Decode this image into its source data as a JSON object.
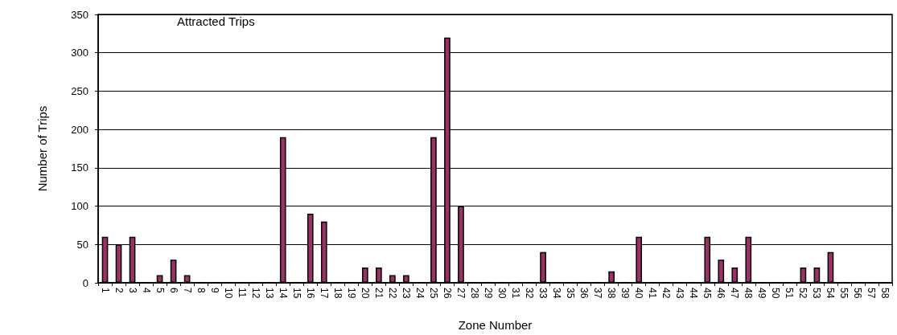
{
  "chart_data": {
    "type": "bar",
    "title": "Attracted Trips",
    "xlabel": "Zone Number",
    "ylabel": "Number of Trips",
    "categories": [
      "1",
      "2",
      "3",
      "4",
      "5",
      "6",
      "7",
      "8",
      "9",
      "10",
      "11",
      "12",
      "13",
      "14",
      "15",
      "16",
      "17",
      "18",
      "19",
      "20",
      "21",
      "22",
      "23",
      "24",
      "25",
      "26",
      "27",
      "28",
      "29",
      "30",
      "31",
      "32",
      "33",
      "34",
      "35",
      "36",
      "37",
      "38",
      "39",
      "40",
      "41",
      "42",
      "43",
      "44",
      "45",
      "46",
      "47",
      "48",
      "49",
      "50",
      "51",
      "52",
      "53",
      "54",
      "55",
      "56",
      "57",
      "58"
    ],
    "values": [
      60,
      50,
      60,
      0,
      10,
      30,
      10,
      0,
      0,
      0,
      0,
      0,
      0,
      190,
      0,
      90,
      80,
      0,
      0,
      20,
      20,
      10,
      10,
      0,
      190,
      320,
      100,
      0,
      0,
      0,
      0,
      0,
      40,
      0,
      0,
      0,
      0,
      15,
      0,
      60,
      0,
      0,
      0,
      0,
      60,
      30,
      20,
      60,
      0,
      0,
      0,
      20,
      20,
      40,
      0,
      0,
      0,
      0
    ],
    "color": "#993366",
    "ylim": [
      0,
      350
    ],
    "yticks": [
      0,
      50,
      100,
      150,
      200,
      250,
      300,
      350
    ],
    "grid": "y"
  }
}
